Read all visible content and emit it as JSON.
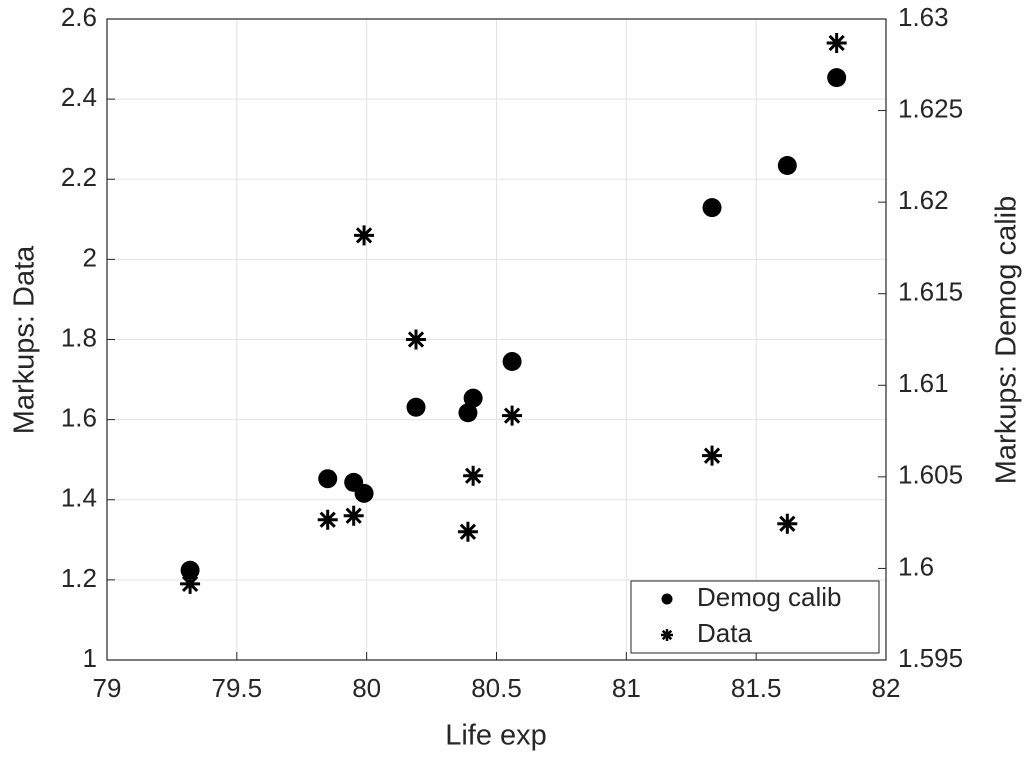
{
  "chart_data": {
    "type": "scatter",
    "xlabel": "Life exp",
    "ylabel": "Markups: Data",
    "y2label": "Markups: Demog calib",
    "xlim": [
      79,
      82
    ],
    "xticks": [
      79,
      79.5,
      80,
      80.5,
      81,
      81.5,
      82
    ],
    "ylim": [
      1,
      2.6
    ],
    "yticks": [
      1,
      1.2,
      1.4,
      1.6,
      1.8,
      2,
      2.2,
      2.4,
      2.6
    ],
    "y2lim": [
      1.595,
      1.63
    ],
    "y2ticks": [
      1.595,
      1.6,
      1.605,
      1.61,
      1.615,
      1.62,
      1.625,
      1.63
    ],
    "grid": true,
    "legend": "lower right",
    "series": [
      {
        "name": "Demog calib",
        "color": "#000000",
        "marker": "circle",
        "axis": "y2",
        "x": [
          79.32,
          79.85,
          79.95,
          79.99,
          80.19,
          80.39,
          80.41,
          80.56,
          81.33,
          81.62,
          81.81
        ],
        "values": [
          1.5999,
          1.6049,
          1.6047,
          1.6041,
          1.6088,
          1.6085,
          1.6093,
          1.6113,
          1.6197,
          1.622,
          1.6268
        ]
      },
      {
        "name": "Data",
        "color": "#000000",
        "marker": "asterisk",
        "x": [
          79.32,
          79.85,
          79.95,
          79.99,
          80.19,
          80.39,
          80.41,
          80.56,
          81.33,
          81.62,
          81.81
        ],
        "values": [
          1.19,
          1.35,
          1.36,
          2.06,
          1.8,
          1.32,
          1.46,
          1.61,
          1.51,
          1.34,
          2.54
        ]
      }
    ]
  }
}
